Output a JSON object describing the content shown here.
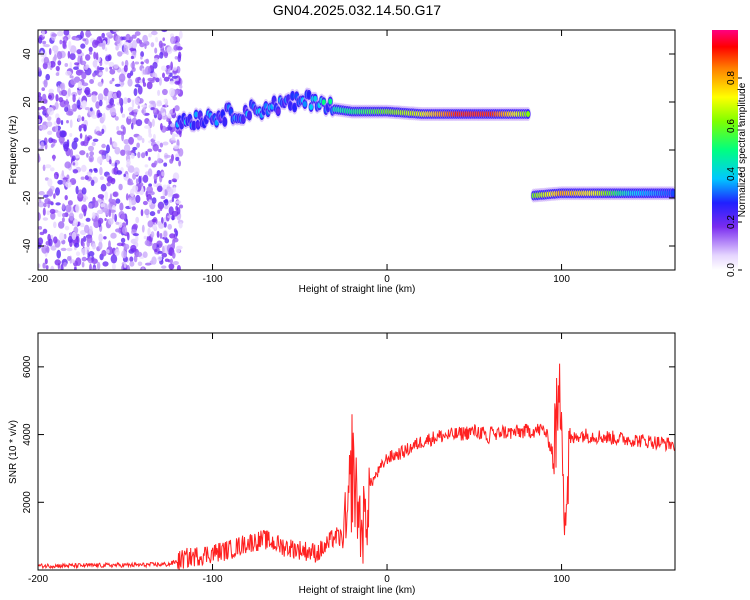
{
  "title": "GN04.2025.032.14.50.G17",
  "chart_data": [
    {
      "type": "heatmap",
      "xlabel": "Height of straight line (km)",
      "ylabel": "Frequency (Hz)",
      "xlim": [
        -200,
        165
      ],
      "ylim": [
        -50,
        50
      ],
      "x_ticks": [
        "-200",
        "-100",
        "0",
        "100"
      ],
      "y_ticks": [
        "40",
        "20",
        "0",
        "-20",
        "-40"
      ],
      "colorbar": {
        "label": "Normalized spectral amplitude",
        "ticks": [
          "0.0",
          "0.2",
          "0.4",
          "0.6",
          "0.8"
        ],
        "range": [
          0,
          1
        ]
      },
      "ridge": [
        {
          "x": -120,
          "f": 12,
          "amp": 0.35
        },
        {
          "x": -100,
          "f": 14,
          "amp": 0.3
        },
        {
          "x": -80,
          "f": 16,
          "amp": 0.35
        },
        {
          "x": -60,
          "f": 19,
          "amp": 0.3
        },
        {
          "x": -40,
          "f": 21,
          "amp": 0.4
        },
        {
          "x": -30,
          "f": 17,
          "amp": 0.45
        },
        {
          "x": -20,
          "f": 16,
          "amp": 0.5
        },
        {
          "x": 0,
          "f": 16,
          "amp": 0.6
        },
        {
          "x": 20,
          "f": 15,
          "amp": 0.7
        },
        {
          "x": 40,
          "f": 15,
          "amp": 0.9
        },
        {
          "x": 60,
          "f": 15,
          "amp": 0.9
        },
        {
          "x": 82,
          "f": 15,
          "amp": 0.6
        },
        {
          "x": 84,
          "f": -19,
          "amp": 0.6
        },
        {
          "x": 100,
          "f": -18,
          "amp": 0.8
        },
        {
          "x": 120,
          "f": -18,
          "amp": 0.7
        },
        {
          "x": 140,
          "f": -18,
          "amp": 0.4
        },
        {
          "x": 165,
          "f": -18,
          "amp": 0.3
        }
      ]
    },
    {
      "type": "line",
      "xlabel": "Height of straight line (km)",
      "ylabel": "SNR (10 * v/v)",
      "xlim": [
        -200,
        165
      ],
      "ylim": [
        0,
        7000
      ],
      "x_ticks": [
        "-200",
        "-100",
        "0",
        "100"
      ],
      "y_ticks": [
        "6000",
        "4000",
        "2000"
      ],
      "color": "#ff2020",
      "series": [
        {
          "x": [
            -200,
            -180,
            -160,
            -140,
            -125,
            -115,
            -100,
            -90,
            -80,
            -70,
            -60,
            -50,
            -40,
            -35,
            -30,
            -25,
            -22,
            -20,
            -17,
            -15,
            -12,
            -10,
            -5,
            0,
            10,
            20,
            30,
            40,
            50,
            55,
            58,
            60,
            62,
            65,
            70,
            80,
            90,
            95,
            98,
            100,
            102,
            105,
            110,
            120,
            130,
            140,
            150,
            165
          ],
          "y": [
            120,
            130,
            140,
            150,
            170,
            350,
            500,
            600,
            800,
            900,
            700,
            600,
            500,
            700,
            1000,
            900,
            1500,
            3200,
            2000,
            1200,
            1500,
            2500,
            2900,
            3300,
            3500,
            3800,
            3950,
            4000,
            4100,
            4050,
            3700,
            4300,
            3900,
            4100,
            4050,
            4100,
            4150,
            3500,
            4700,
            5200,
            1500,
            3800,
            4000,
            3950,
            3900,
            3850,
            3800,
            3700
          ]
        }
      ]
    }
  ]
}
